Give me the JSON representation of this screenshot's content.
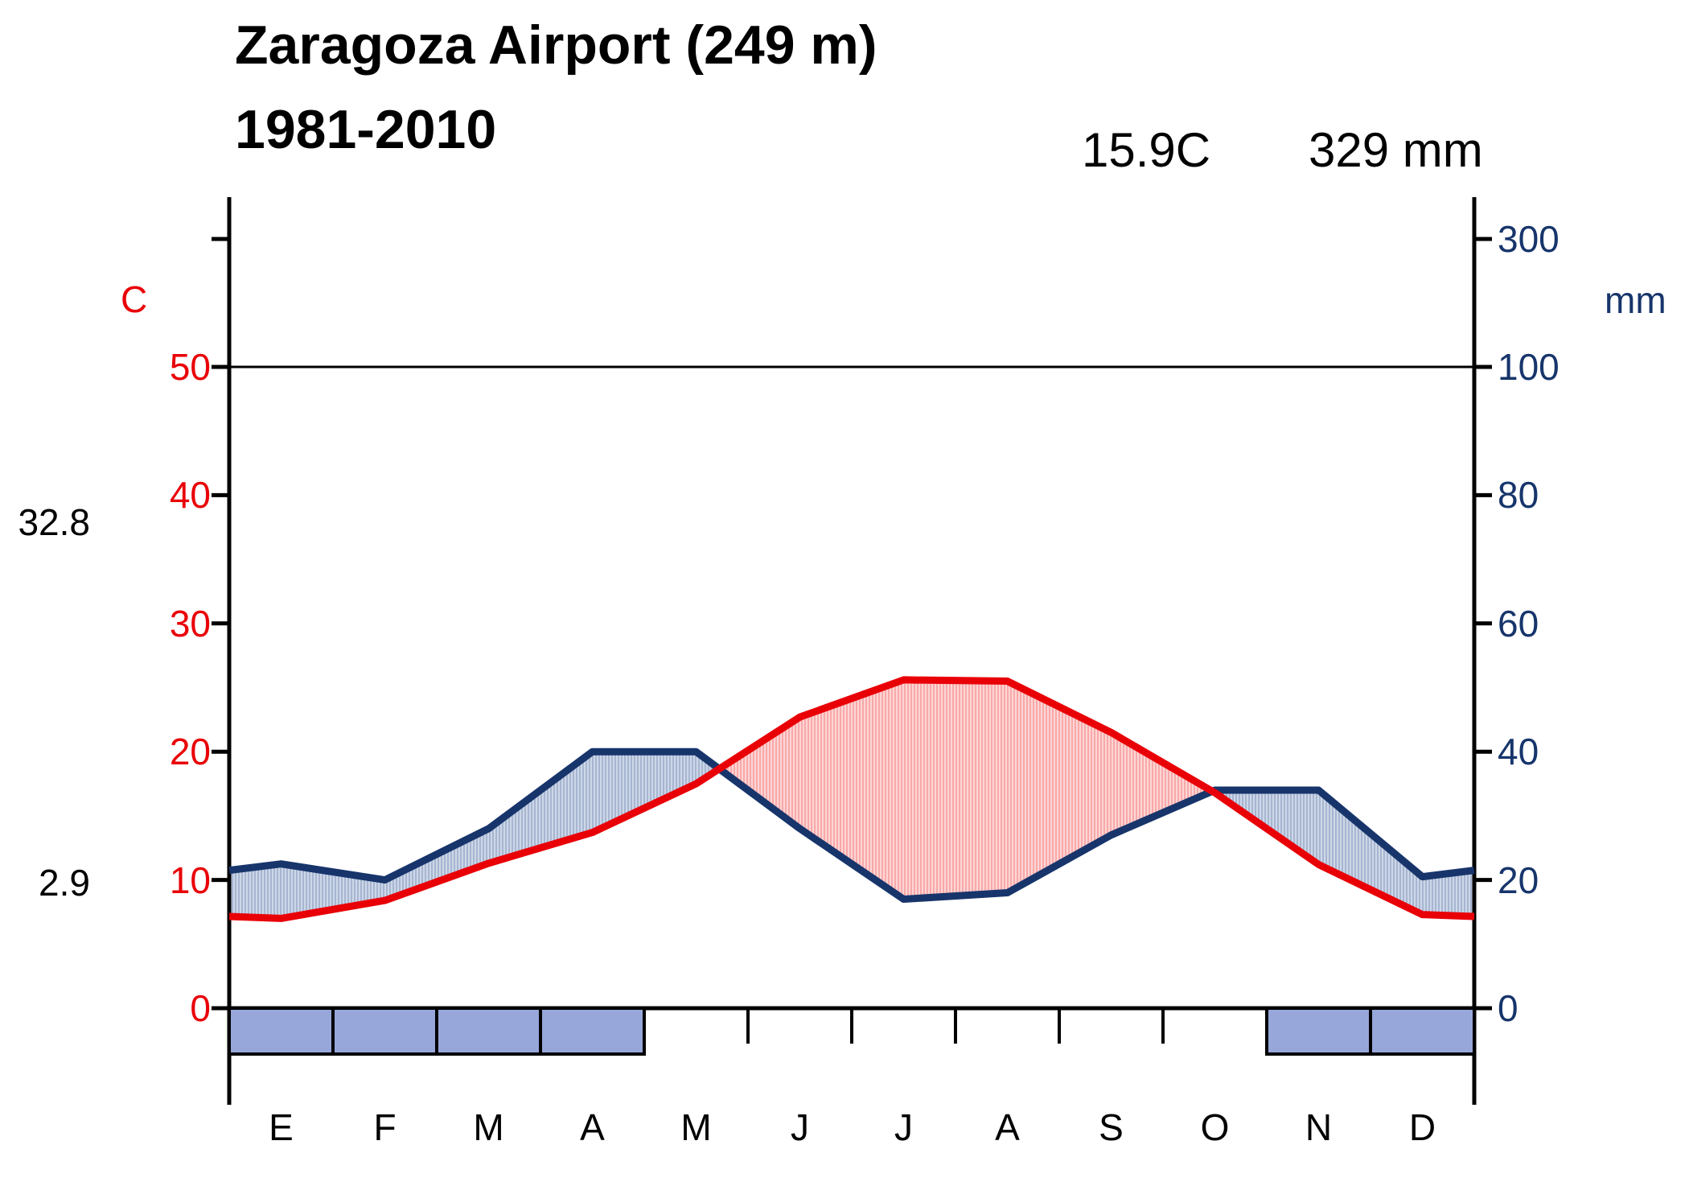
{
  "title": {
    "line1": "Zaragoza Airport (249 m)",
    "line2": "1981-2010"
  },
  "summary": {
    "annual_mean_temperature_label": "15.9C",
    "annual_precipitation_label": "329 mm"
  },
  "axes": {
    "left": {
      "unit": "C",
      "tick_values": [
        0,
        10,
        20,
        30,
        40,
        50
      ],
      "color": "#e90007"
    },
    "right": {
      "unit": "mm",
      "tick_values": [
        0,
        20,
        40,
        60,
        80,
        100,
        300
      ],
      "color": "#17356b"
    },
    "extremes": {
      "mean_max_warmest_month": "32.8",
      "mean_min_coldest_month": "2.9"
    }
  },
  "chart_data": {
    "type": "line",
    "title": "Walter-Lieth climate diagram, Zaragoza Airport 1981-2010",
    "categories": [
      "E",
      "F",
      "M",
      "A",
      "M",
      "J",
      "J",
      "A",
      "S",
      "O",
      "N",
      "D"
    ],
    "series": [
      {
        "name": "mean temperature (C)",
        "color": "#e90007",
        "values": [
          7.0,
          8.4,
          11.3,
          13.7,
          17.5,
          22.7,
          25.6,
          25.5,
          21.5,
          16.8,
          11.2,
          7.3
        ]
      },
      {
        "name": "precipitation (mm)",
        "color": "#17356b",
        "values": [
          22.5,
          20,
          28,
          40,
          40,
          28,
          17,
          18,
          27,
          34,
          34,
          20.5
        ]
      }
    ],
    "annual_mean_temperature_c": 15.9,
    "annual_precipitation_mm": 329,
    "temp_axis_range_c": [
      0,
      50
    ],
    "precip_axis_note": "2 mm per 1 C up to 100 mm, compressed 1:10 above (300 mm tick)",
    "frost_month_indexes": [
      0,
      1,
      2,
      3,
      10,
      11
    ],
    "legend_position": "none",
    "grid": "horizontal reference line at 50 C / 100 mm only",
    "fills": {
      "humid_period": "blue vertical hatch where precipitation curve is above temperature curve",
      "arid_period": "red vertical hatch where temperature curve is above precipitation curve"
    }
  },
  "colors": {
    "temperature_line": "#e90007",
    "precipitation_line": "#17356b",
    "humid_hatch_dark": "#a6b5d1",
    "humid_hatch_light": "#cdd7e7",
    "arid_hatch_dark": "#f9a8a8",
    "arid_hatch_light": "#fdd6d6",
    "frost_box_fill": "#97a7da",
    "axis_line": "#000000"
  }
}
